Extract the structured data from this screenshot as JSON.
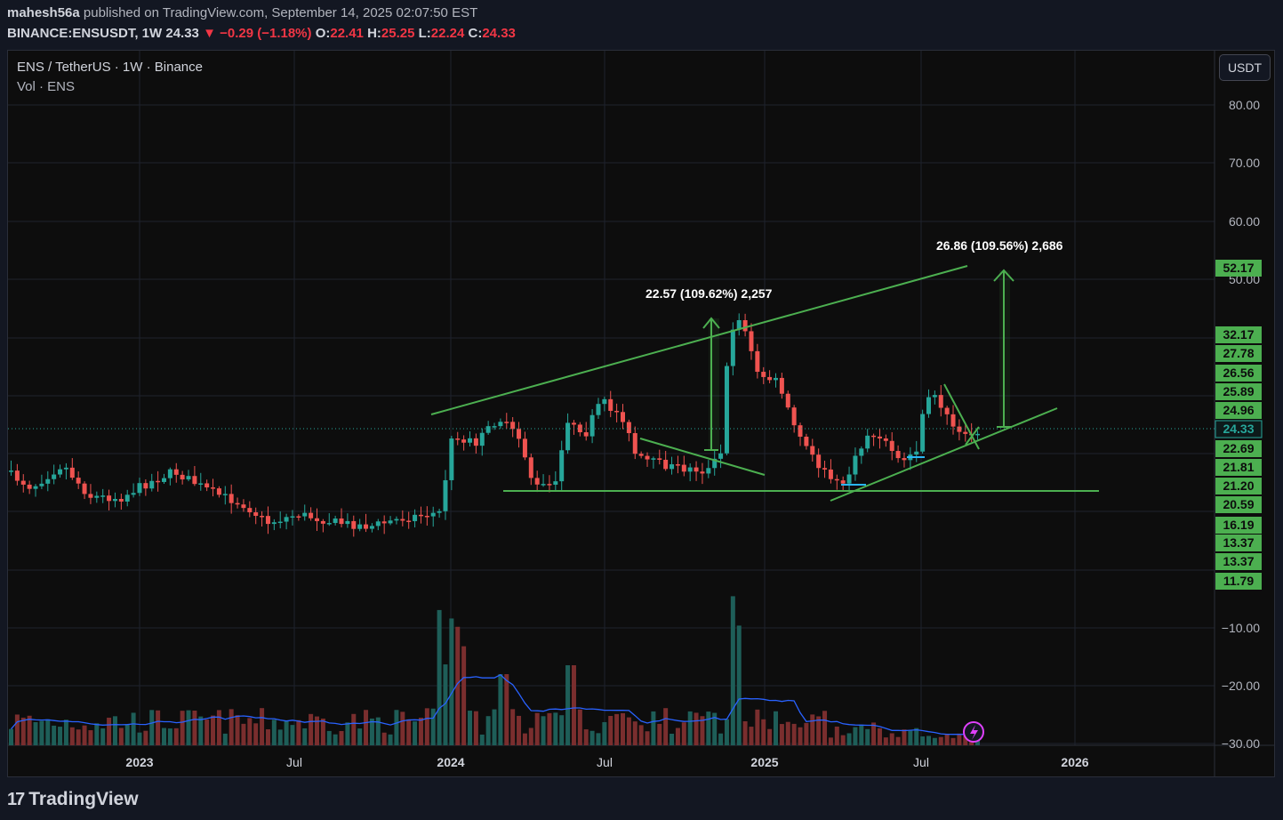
{
  "header": {
    "author": "mahesh56a",
    "published": "published on TradingView.com, September 14, 2025 02:07:50 EST",
    "symbol": "BINANCE:ENSUSDT, 1W",
    "last": "24.33",
    "change_arrow": "▼",
    "change": "−0.29 (−1.18%)",
    "o_label": "O:",
    "o": "22.41",
    "h_label": "H:",
    "h": "25.25",
    "l_label": "L:",
    "l": "22.24",
    "c_label": "C:",
    "c": "24.33"
  },
  "legend": {
    "main": "ENS / TetherUS · 1W · Binance",
    "vol": "Vol · ENS"
  },
  "unit_button": "USDT",
  "footer": {
    "logo_icon": "tradingview-logo-icon",
    "brand": "TradingView"
  },
  "colors": {
    "up": "#26a69a",
    "down": "#ef5350",
    "drawing": "#4caf50",
    "ma": "#2962ff",
    "label_bg": "#4caf50"
  },
  "chart_data": {
    "type": "candlestick",
    "interval": "1W",
    "x_ticks": [
      "2023",
      "Jul",
      "2024",
      "Jul",
      "2025",
      "Jul",
      "2026"
    ],
    "y_ticks": [
      "80.00",
      "70.00",
      "60.00",
      "50.00",
      "−10.00",
      "−20.00",
      "−30.00"
    ],
    "price_labels": [
      "52.17",
      "32.17",
      "27.78",
      "26.56",
      "25.89",
      "24.96",
      "24.33",
      "22.69",
      "21.81",
      "21.20",
      "20.59",
      "16.19",
      "13.37",
      "13.37",
      "11.79"
    ],
    "current_price": "24.33",
    "annotations": [
      {
        "text": "22.57 (109.62%) 2,257",
        "type": "measure"
      },
      {
        "text": "26.86 (109.56%) 2,686",
        "type": "measure"
      }
    ],
    "patterns": [
      "ascending channel upper trendline",
      "horizontal support",
      "rising support trendline",
      "descending wedge",
      "bull flag"
    ],
    "volume_note": "volume histogram with moving average",
    "grid": true
  }
}
